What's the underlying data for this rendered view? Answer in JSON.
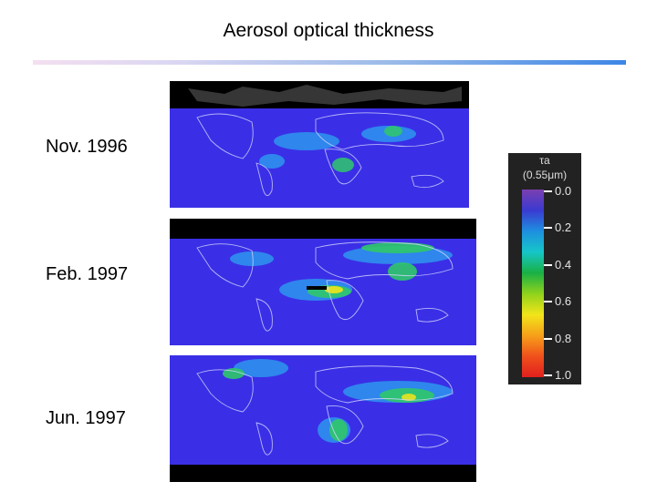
{
  "title": "Aerosol optical thickness",
  "maps": [
    {
      "label": "Nov. 1996"
    },
    {
      "label": "Feb. 1997"
    },
    {
      "label": "Jun. 1997"
    }
  ],
  "colorbar": {
    "symbol": "τa",
    "wavelength": "(0.55μm)",
    "ticks": [
      "0.0",
      "0.2",
      "0.4",
      "0.6",
      "0.8",
      "1.0"
    ],
    "colors": [
      "#7b3fb0",
      "#3a3ad0",
      "#1e8fe0",
      "#16c6c8",
      "#19b045",
      "#8fd21c",
      "#f2e51a",
      "#f6a019",
      "#f0501c",
      "#e0201e"
    ]
  }
}
